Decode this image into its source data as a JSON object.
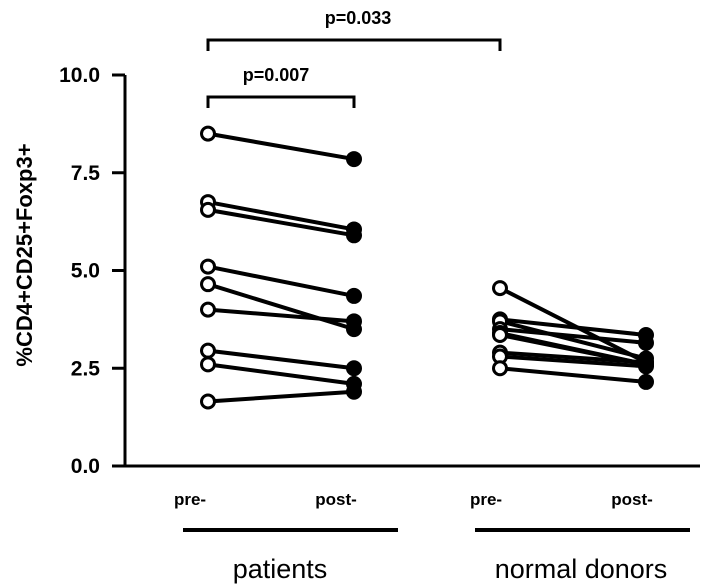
{
  "chart_data": {
    "type": "line",
    "ylabel": "%CD4+CD25+Foxp3+",
    "ylim": [
      0,
      10
    ],
    "yticks": [
      "0.0",
      "2.5",
      "5.0",
      "7.5",
      "10.0"
    ],
    "categories": [
      "pre-",
      "post-",
      "pre-",
      "post-"
    ],
    "groups": [
      {
        "name": "patients",
        "pairs": [
          [
            8.5,
            7.85
          ],
          [
            6.75,
            6.05
          ],
          [
            6.55,
            5.9
          ],
          [
            5.1,
            4.35
          ],
          [
            4.65,
            3.5
          ],
          [
            4.0,
            3.7
          ],
          [
            2.95,
            2.5
          ],
          [
            2.6,
            2.1
          ],
          [
            1.65,
            1.9
          ]
        ]
      },
      {
        "name": "normal donors",
        "pairs": [
          [
            4.55,
            2.65
          ],
          [
            3.75,
            3.35
          ],
          [
            3.7,
            2.75
          ],
          [
            3.5,
            3.15
          ],
          [
            3.4,
            2.6
          ],
          [
            3.35,
            2.6
          ],
          [
            2.9,
            2.65
          ],
          [
            2.8,
            2.55
          ],
          [
            2.5,
            2.15
          ]
        ]
      }
    ],
    "annotations": [
      {
        "label": "p=0.007",
        "from_category": 0,
        "to_category": 1
      },
      {
        "label": "p=0.033",
        "from_category": 0,
        "to_category": 2
      }
    ],
    "markers": {
      "pre": "open-circle",
      "post": "filled-circle"
    },
    "colors": {
      "line": "#000000",
      "marker_fill_open": "#ffffff",
      "marker_fill_closed": "#000000"
    }
  }
}
